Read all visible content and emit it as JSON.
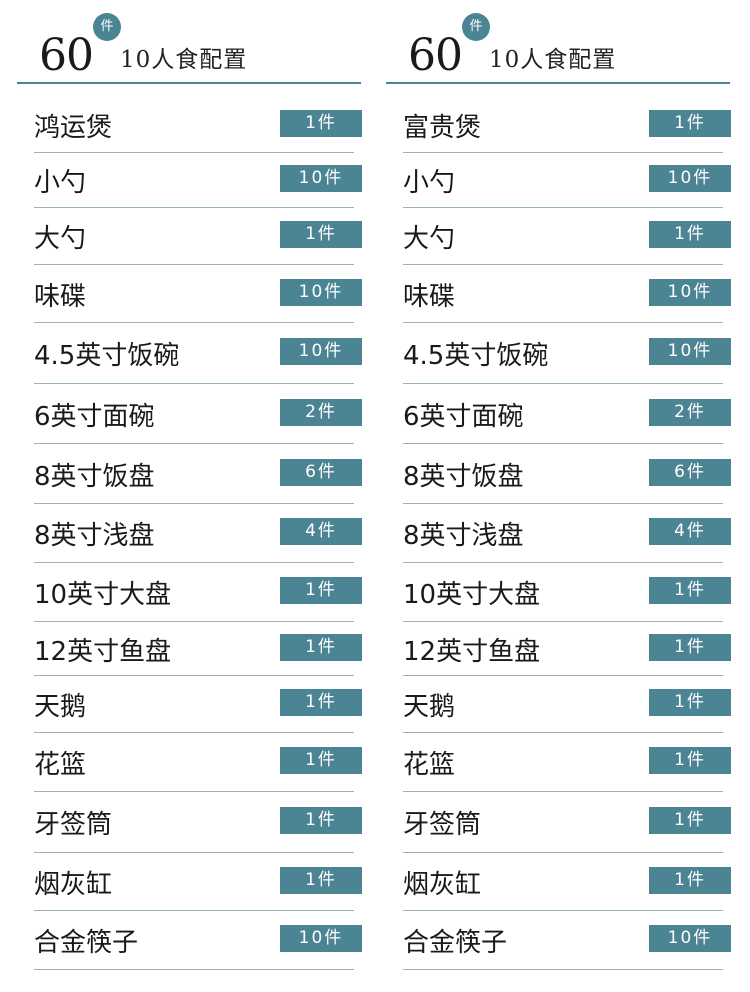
{
  "columns": [
    {
      "count": "60",
      "badge": "件",
      "subtitle": "10人食配置",
      "items": [
        {
          "name": "鸿运煲",
          "qty": "1件"
        },
        {
          "name": "小勺",
          "qty": "10件"
        },
        {
          "name": "大勺",
          "qty": "1件"
        },
        {
          "name": "味碟",
          "qty": "10件"
        },
        {
          "name": "4.5英寸饭碗",
          "qty": "10件"
        },
        {
          "name": "6英寸面碗",
          "qty": "2件"
        },
        {
          "name": "8英寸饭盘",
          "qty": "6件"
        },
        {
          "name": "8英寸浅盘",
          "qty": "4件"
        },
        {
          "name": "10英寸大盘",
          "qty": "1件"
        },
        {
          "name": "12英寸鱼盘",
          "qty": "1件"
        },
        {
          "name": "天鹅",
          "qty": "1件"
        },
        {
          "name": "花篮",
          "qty": "1件"
        },
        {
          "name": "牙签筒",
          "qty": "1件"
        },
        {
          "name": "烟灰缸",
          "qty": "1件"
        },
        {
          "name": "合金筷子",
          "qty": "10件"
        }
      ]
    },
    {
      "count": "60",
      "badge": "件",
      "subtitle": "10人食配置",
      "items": [
        {
          "name": "富贵煲",
          "qty": "1件"
        },
        {
          "name": "小勺",
          "qty": "10件"
        },
        {
          "name": "大勺",
          "qty": "1件"
        },
        {
          "name": "味碟",
          "qty": "10件"
        },
        {
          "name": "4.5英寸饭碗",
          "qty": "10件"
        },
        {
          "name": "6英寸面碗",
          "qty": "2件"
        },
        {
          "name": "8英寸饭盘",
          "qty": "6件"
        },
        {
          "name": "8英寸浅盘",
          "qty": "4件"
        },
        {
          "name": "10英寸大盘",
          "qty": "1件"
        },
        {
          "name": "12英寸鱼盘",
          "qty": "1件"
        },
        {
          "name": "天鹅",
          "qty": "1件"
        },
        {
          "name": "花篮",
          "qty": "1件"
        },
        {
          "name": "牙签筒",
          "qty": "1件"
        },
        {
          "name": "烟灰缸",
          "qty": "1件"
        },
        {
          "name": "合金筷子",
          "qty": "10件"
        }
      ]
    }
  ],
  "colors": {
    "accent": "#4b8493",
    "rule": "#9bb4ba",
    "text": "#1a1a1a"
  }
}
